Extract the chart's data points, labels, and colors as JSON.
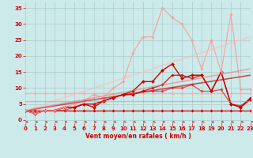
{
  "background_color": "#cceaea",
  "grid_color": "#aacccc",
  "xlabel": "Vent moyen/en rafales ( km/h )",
  "xlabel_color": "#cc0000",
  "tick_color": "#cc0000",
  "xlim": [
    0,
    23
  ],
  "ylim": [
    -1,
    37
  ],
  "yticks": [
    0,
    5,
    10,
    15,
    20,
    25,
    30,
    35
  ],
  "xticks": [
    0,
    1,
    2,
    3,
    4,
    5,
    6,
    7,
    8,
    9,
    10,
    11,
    12,
    13,
    14,
    15,
    16,
    17,
    18,
    19,
    20,
    21,
    22,
    23
  ],
  "lines": [
    {
      "x": [
        0,
        1,
        2,
        3,
        4,
        5,
        6,
        7,
        8,
        9,
        10,
        11,
        12,
        13,
        14,
        15,
        16,
        17,
        18,
        19,
        20,
        21,
        22,
        23
      ],
      "y": [
        8.5,
        8.5,
        8.5,
        8.5,
        8.5,
        8.5,
        8.5,
        8.5,
        8.5,
        8.5,
        8.5,
        8.5,
        8.5,
        8.5,
        8.5,
        8.5,
        8.5,
        8.5,
        8.5,
        8.5,
        8.5,
        8.5,
        8.5,
        8.5
      ],
      "color": "#ffaaaa",
      "lw": 0.9,
      "marker": "D",
      "ms": 1.8,
      "alpha": 1.0
    },
    {
      "x": [
        0,
        1,
        2,
        3,
        4,
        5,
        6,
        7,
        8,
        9,
        10,
        11,
        12,
        13,
        14,
        15,
        16,
        17,
        18,
        19,
        20,
        21,
        22,
        23
      ],
      "y": [
        3,
        3,
        3,
        3,
        3,
        3,
        3,
        3,
        3,
        3,
        3,
        3,
        3,
        3,
        3,
        3,
        3,
        3,
        3,
        3,
        3,
        3,
        3,
        3
      ],
      "color": "#cc0000",
      "lw": 0.9,
      "marker": "D",
      "ms": 1.8,
      "alpha": 1.0
    },
    {
      "x": [
        0,
        1,
        2,
        3,
        4,
        5,
        6,
        7,
        8,
        9,
        10,
        11,
        12,
        13,
        14,
        15,
        16,
        17,
        18,
        19,
        20,
        21,
        22,
        23
      ],
      "y": [
        3,
        2,
        3,
        3,
        3,
        4,
        5,
        5,
        6,
        7,
        8,
        8,
        9,
        9,
        9,
        10,
        10,
        11,
        9,
        9,
        9.5,
        5,
        4.5,
        6.5
      ],
      "color": "#dd3333",
      "lw": 0.9,
      "marker": "D",
      "ms": 1.8,
      "alpha": 0.85
    },
    {
      "x": [
        0,
        1,
        2,
        3,
        4,
        5,
        6,
        7,
        8,
        9,
        10,
        11,
        12,
        13,
        14,
        15,
        16,
        17,
        18,
        19,
        20,
        21,
        22,
        23
      ],
      "y": [
        3,
        2,
        3,
        3,
        4,
        4,
        5,
        5,
        6,
        7,
        8,
        8,
        9,
        10,
        11,
        14,
        14,
        13,
        14,
        9,
        15,
        5,
        4,
        7
      ],
      "color": "#cc0000",
      "lw": 0.9,
      "marker": "D",
      "ms": 1.8,
      "alpha": 0.9
    },
    {
      "x": [
        0,
        1,
        2,
        3,
        4,
        5,
        6,
        7,
        8,
        9,
        10,
        11,
        12,
        13,
        14,
        15,
        16,
        17,
        18,
        19,
        20,
        21,
        22,
        23
      ],
      "y": [
        3,
        2,
        3,
        3,
        4,
        4,
        5,
        4,
        6,
        7,
        8,
        9,
        12,
        12,
        15.5,
        17.5,
        13,
        14,
        14,
        9,
        15,
        5,
        4,
        6.5
      ],
      "color": "#cc0000",
      "lw": 1.0,
      "marker": "D",
      "ms": 2.2,
      "alpha": 1.0
    },
    {
      "x": [
        0,
        1,
        2,
        3,
        4,
        5,
        6,
        7,
        8,
        9,
        10,
        11,
        12,
        13,
        14,
        15,
        16,
        17,
        18,
        19,
        20,
        21,
        22,
        23
      ],
      "y": [
        3,
        2,
        3,
        3,
        4,
        5,
        6,
        8,
        7,
        10,
        12,
        21,
        26,
        26,
        35,
        32,
        30,
        25,
        16,
        25,
        15,
        33,
        9.5,
        9.5
      ],
      "color": "#ff9999",
      "lw": 0.9,
      "marker": "D",
      "ms": 1.8,
      "alpha": 0.85
    },
    {
      "x": [
        0,
        23
      ],
      "y": [
        3,
        14
      ],
      "color": "#cc0000",
      "lw": 1.2,
      "marker": null,
      "ms": 0,
      "alpha": 0.65
    },
    {
      "x": [
        0,
        23
      ],
      "y": [
        3,
        16
      ],
      "color": "#ee7777",
      "lw": 1.2,
      "marker": null,
      "ms": 0,
      "alpha": 0.55
    },
    {
      "x": [
        0,
        23
      ],
      "y": [
        3,
        26
      ],
      "color": "#ffbbbb",
      "lw": 1.2,
      "marker": null,
      "ms": 0,
      "alpha": 0.65
    },
    {
      "x": [
        0,
        23
      ],
      "y": [
        6,
        6
      ],
      "color": "#ee7777",
      "lw": 0.9,
      "marker": null,
      "ms": 0,
      "alpha": 0.5
    }
  ]
}
